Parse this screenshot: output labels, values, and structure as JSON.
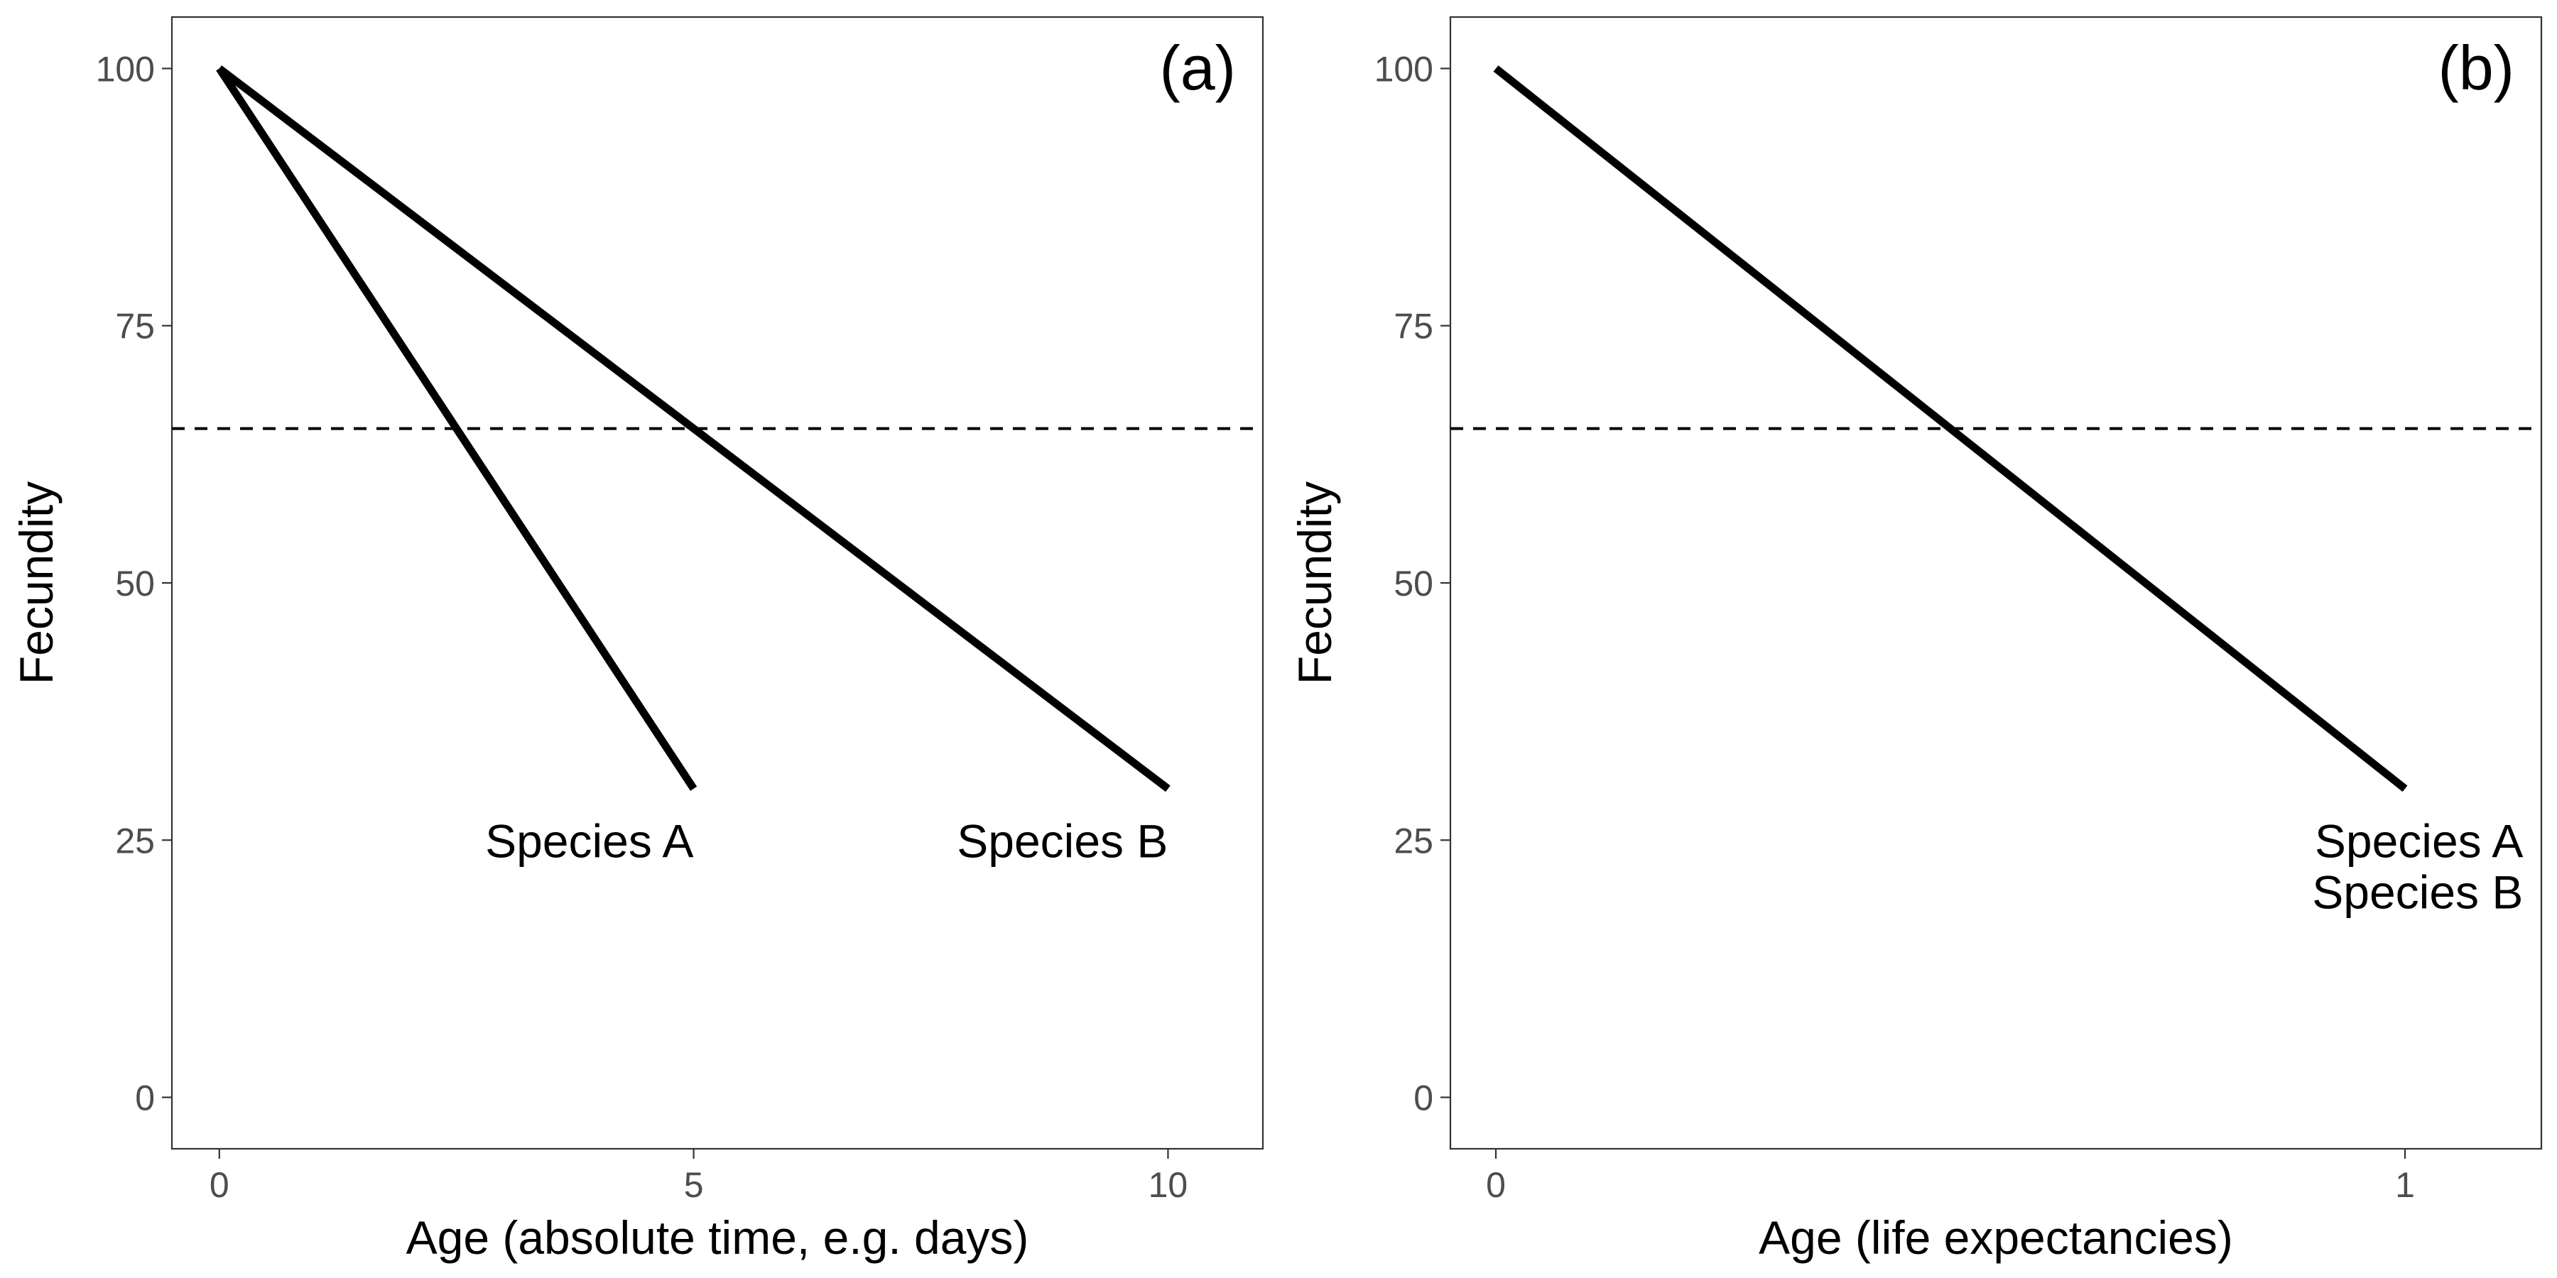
{
  "chart_data": [
    {
      "type": "line",
      "panel_label": "(a)",
      "xlabel": "Age (absolute time, e.g. days)",
      "ylabel": "Fecundity",
      "xlim": [
        -0.5,
        11
      ],
      "ylim": [
        -5,
        105
      ],
      "x_ticks": [
        0,
        5,
        10
      ],
      "y_ticks": [
        0,
        25,
        50,
        75,
        100
      ],
      "grid": false,
      "reference_line": {
        "y": 65,
        "style": "dashed"
      },
      "series": [
        {
          "name": "Species A",
          "x": [
            0,
            5
          ],
          "y": [
            100,
            30
          ]
        },
        {
          "name": "Species B",
          "x": [
            0,
            10
          ],
          "y": [
            100,
            30
          ]
        }
      ],
      "annotations": [
        {
          "text": "Species A",
          "x": 5,
          "y": 25,
          "anchor": "end"
        },
        {
          "text": "Species B",
          "x": 10,
          "y": 25,
          "anchor": "end"
        }
      ]
    },
    {
      "type": "line",
      "panel_label": "(b)",
      "xlabel": "Age (life expectancies)",
      "ylabel": "Fecundity",
      "xlim": [
        -0.05,
        1.15
      ],
      "ylim": [
        -5,
        105
      ],
      "x_ticks": [
        0,
        1
      ],
      "y_ticks": [
        0,
        25,
        50,
        75,
        100
      ],
      "grid": false,
      "reference_line": {
        "y": 65,
        "style": "dashed"
      },
      "series": [
        {
          "name": "Species A / Species B",
          "x": [
            0,
            1
          ],
          "y": [
            100,
            30
          ]
        }
      ],
      "annotations": [
        {
          "text": "Species A",
          "x": 1.13,
          "y": 25,
          "anchor": "end"
        },
        {
          "text": "Species B",
          "x": 1.13,
          "y": 20,
          "anchor": "end"
        }
      ]
    }
  ]
}
